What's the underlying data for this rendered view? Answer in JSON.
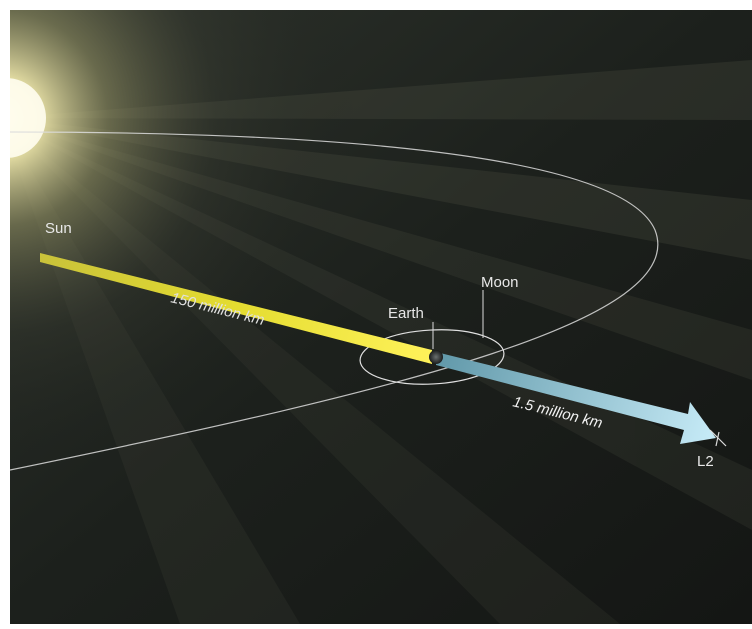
{
  "labels": {
    "sun": "Sun",
    "earth": "Earth",
    "moon": "Moon",
    "l2": "L2",
    "sun_earth_distance": "150 million km",
    "earth_l2_distance": "1.5 million km"
  },
  "colors": {
    "space": "#1a1d1a",
    "sun_glow": "#fff8c8",
    "sun_beam": "#e8dc3a",
    "l2_arrow": "#a8d8ec",
    "orbit_line": "#d8d8d8",
    "text": "#e6e6e6"
  }
}
